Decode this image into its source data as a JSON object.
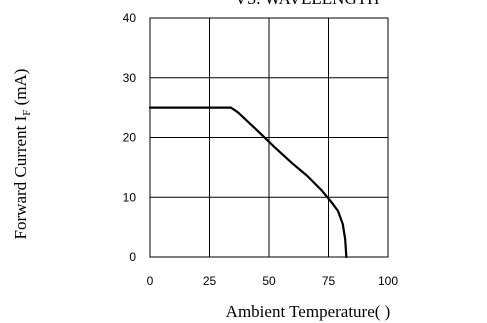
{
  "chart_data": {
    "type": "line",
    "title": "VS. WAVELENGTH",
    "xlabel": "Ambient Temperature(   )",
    "ylabel_main": "Forward Current I",
    "ylabel_sub": "F",
    "ylabel_unit": " (mA)",
    "xlim": [
      0,
      100
    ],
    "ylim": [
      0,
      40
    ],
    "xticks": [
      0,
      25,
      50,
      75,
      100
    ],
    "yticks": [
      0,
      10,
      20,
      30,
      40
    ],
    "grid": true,
    "series": [
      {
        "x": [
          0,
          34,
          37,
          45,
          52,
          60,
          66,
          72,
          76,
          79,
          81,
          82,
          82.5
        ],
        "y": [
          25,
          25,
          24.2,
          21.2,
          18.5,
          15.6,
          13.6,
          11.2,
          9.3,
          7.7,
          5.5,
          3,
          0
        ]
      }
    ]
  }
}
